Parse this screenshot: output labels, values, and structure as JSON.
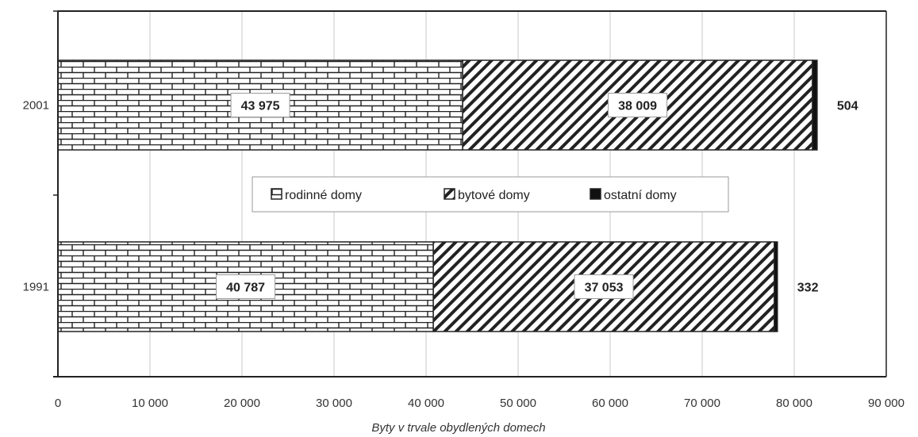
{
  "chart_data": {
    "type": "bar",
    "orientation": "horizontal",
    "stacked": true,
    "categories": [
      "2001",
      "1991"
    ],
    "series": [
      {
        "name": "rodinné domy",
        "values": [
          43975,
          40787
        ],
        "labels": [
          "43 975",
          "40 787"
        ],
        "pattern": "brick"
      },
      {
        "name": "bytové domy",
        "values": [
          38009,
          37053
        ],
        "labels": [
          "38 009",
          "37 053"
        ],
        "pattern": "diagonal"
      },
      {
        "name": "ostatní domy",
        "values": [
          504,
          332
        ],
        "labels": [
          "504",
          "332"
        ],
        "pattern": "solid"
      }
    ],
    "xlabel": "Byty v trvale obydlených domech",
    "xlim": [
      0,
      90000
    ],
    "xticks": [
      0,
      10000,
      20000,
      30000,
      40000,
      50000,
      60000,
      70000,
      80000,
      90000
    ],
    "xtick_labels": [
      "0",
      "10 000",
      "20 000",
      "30 000",
      "40 000",
      "50 000",
      "60 000",
      "70 000",
      "80 000",
      "90 000"
    ],
    "grid": "vertical",
    "legend": "center"
  },
  "colors": {
    "ink": "#222222",
    "grid": "#c8c8c8",
    "background": "#ffffff"
  }
}
